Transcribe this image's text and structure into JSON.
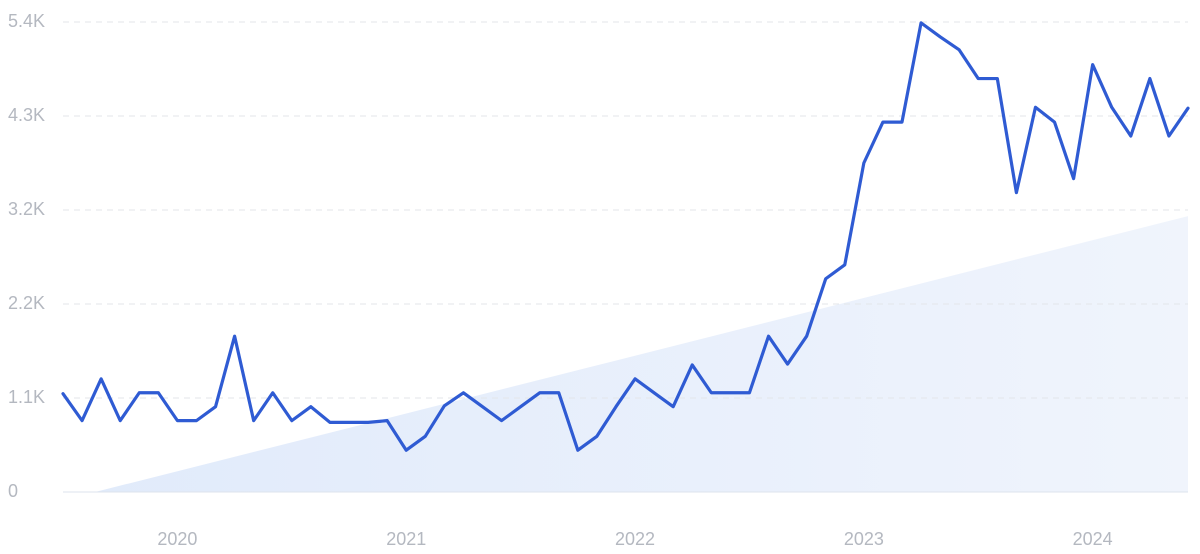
{
  "chart_data": {
    "type": "line",
    "categories": [
      null,
      null,
      null,
      null,
      null,
      null,
      "2020",
      null,
      null,
      null,
      null,
      null,
      null,
      null,
      null,
      null,
      null,
      null,
      "2021",
      null,
      null,
      null,
      null,
      null,
      null,
      null,
      null,
      null,
      null,
      null,
      "2022",
      null,
      null,
      null,
      null,
      null,
      null,
      null,
      null,
      null,
      null,
      null,
      "2023",
      null,
      null,
      null,
      null,
      null,
      null,
      null,
      null,
      null,
      null,
      null,
      "2024",
      null,
      null,
      null,
      null,
      null
    ],
    "series": [
      {
        "color": "#2f5bd3",
        "values": [
          1130,
          820,
          1300,
          820,
          1140,
          1140,
          820,
          820,
          980,
          1790,
          820,
          1140,
          820,
          980,
          800,
          800,
          800,
          820,
          480,
          640,
          990,
          1140,
          980,
          820,
          980,
          1140,
          1140,
          480,
          640,
          980,
          1300,
          1140,
          980,
          1460,
          1140,
          1140,
          1140,
          1790,
          1470,
          1790,
          2450,
          2610,
          3780,
          4250,
          4250,
          5390,
          5230,
          5080,
          4750,
          4750,
          3440,
          4420,
          4250,
          3600,
          4910,
          4420,
          4090,
          4750,
          4090,
          4410
        ]
      }
    ],
    "trend": {
      "color": "#e3edfc",
      "values": [
        -93,
        3170
      ]
    },
    "ylim": [
      0,
      5400
    ],
    "yticks": [
      0,
      {
        "value": 1080,
        "label": "1.1K"
      },
      {
        "value": 2160,
        "label": "2.2K"
      },
      {
        "value": 3240,
        "label": "3.2K"
      },
      {
        "value": 4320,
        "label": "4.3K"
      },
      {
        "value": 5400,
        "label": "5.4K"
      }
    ],
    "grid": true
  }
}
